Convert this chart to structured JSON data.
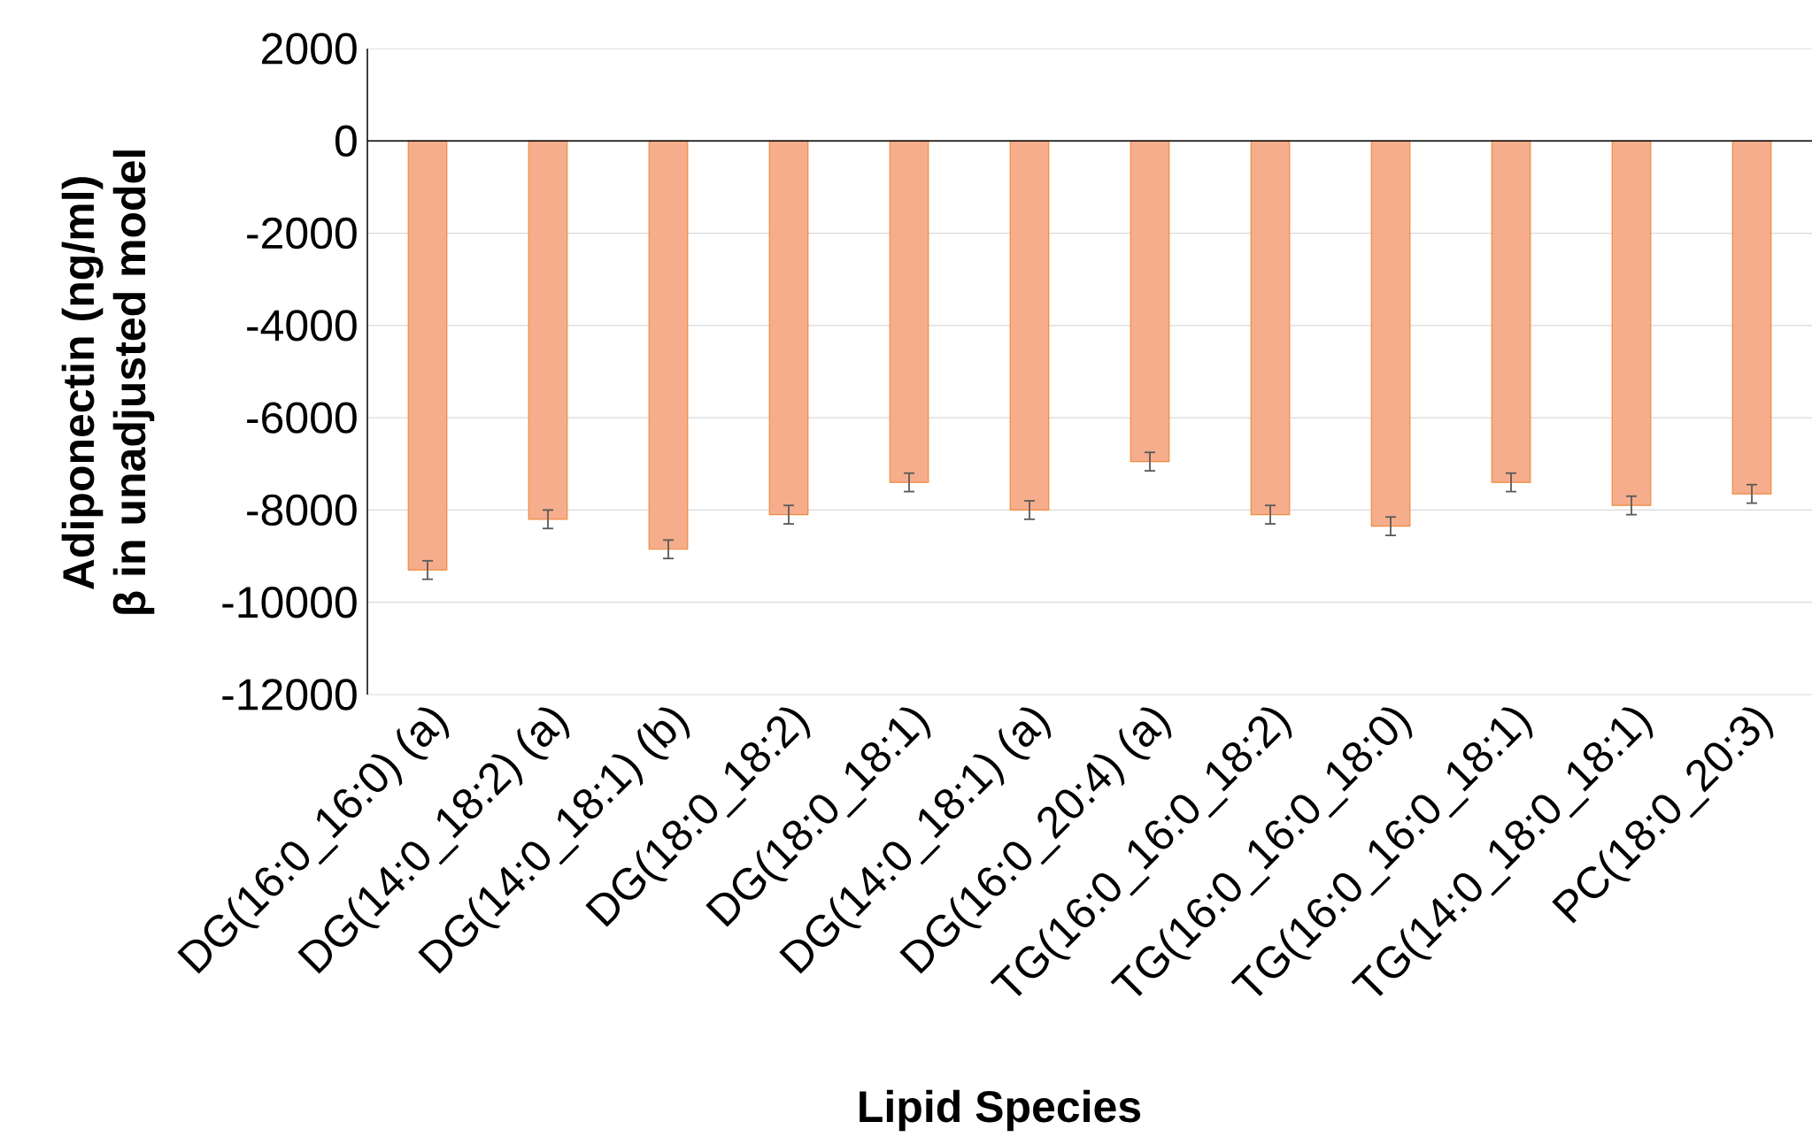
{
  "chart_data": {
    "type": "bar",
    "xlabel": "Lipid Species",
    "ylabel": "Adiponectin (ng/ml) β in unadjusted model",
    "categories": [
      "DG(16:0_16:0) (a)",
      "DG(14:0_18:2) (a)",
      "DG(14:0_18:1) (b)",
      "DG(18:0_18:2)",
      "DG(18:0_18:1)",
      "DG(14:0_18:1) (a)",
      "DG(16:0_20:4) (a)",
      "TG(16:0_16:0_18:2)",
      "TG(16:0_16:0_18:0)",
      "TG(16:0_16:0_18:1)",
      "TG(14:0_18:0_18:1)",
      "PC(18:0_20:3)"
    ],
    "values": [
      -9300,
      -8200,
      -8850,
      -8100,
      -7400,
      -8000,
      -6950,
      -8100,
      -8350,
      -7400,
      -7900,
      -7650
    ],
    "errors": [
      200,
      200,
      200,
      200,
      200,
      200,
      200,
      200,
      200,
      200,
      200,
      200
    ],
    "color": "#f5ad8c",
    "ylim": [
      -12000,
      2000
    ],
    "yticks": [
      -12000,
      -10000,
      -8000,
      -6000,
      -4000,
      -2000,
      0,
      2000
    ],
    "grid": "y"
  }
}
